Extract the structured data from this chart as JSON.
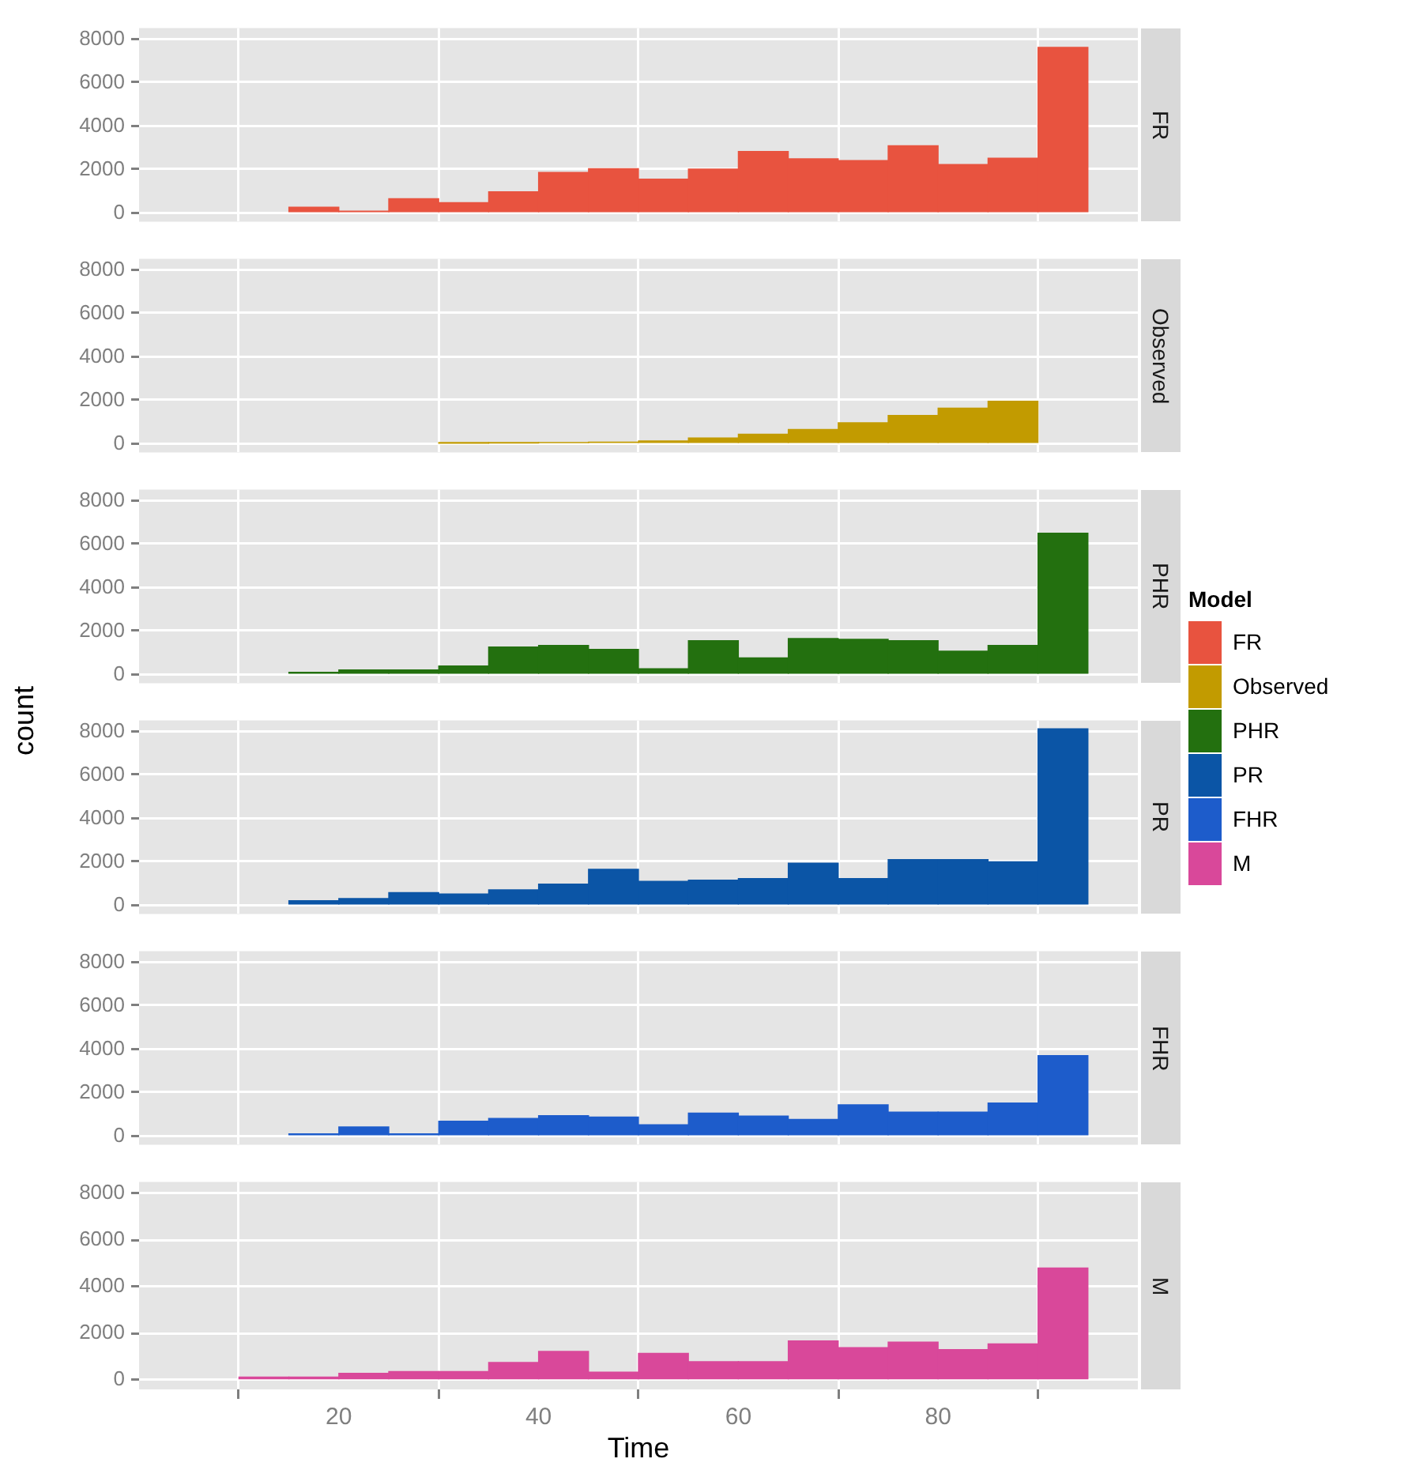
{
  "chart_data": [
    {
      "type": "histogram",
      "bins": [
        15,
        20,
        25,
        30,
        35,
        40,
        45,
        50,
        55,
        60,
        65,
        70,
        75,
        80,
        85,
        90,
        95
      ],
      "series": [
        {
          "name": "FR",
          "color": "#e8533f",
          "values": [
            260,
            80,
            650,
            470,
            970,
            1860,
            2040,
            1550,
            2020,
            2830,
            2490,
            2410,
            3090,
            2230,
            2520,
            7620
          ]
        }
      ],
      "xlim": [
        0,
        100
      ],
      "xticks": [
        20,
        40,
        60,
        80
      ],
      "ylim": [
        -400,
        8500
      ],
      "yticks": [
        0,
        2000,
        4000,
        6000,
        8000
      ],
      "grid": true,
      "tick_labels": "y",
      "legend": "right",
      "legend_title": "Model"
    },
    {
      "type": "histogram",
      "bins": [
        30,
        35,
        40,
        45,
        50,
        55,
        60,
        65,
        70,
        75,
        80,
        85,
        90
      ],
      "series": [
        {
          "name": "Observed",
          "color": "#c29b00",
          "values": [
            20,
            30,
            50,
            70,
            130,
            260,
            440,
            650,
            960,
            1300,
            1640,
            1950
          ]
        }
      ],
      "xlim": [
        0,
        100
      ],
      "xticks": [
        20,
        40,
        60,
        80
      ],
      "ylim": [
        -400,
        8500
      ],
      "yticks": [
        0,
        2000,
        4000,
        6000,
        8000
      ],
      "grid": true,
      "tick_labels": "y",
      "legend": "right"
    },
    {
      "type": "histogram",
      "bins": [
        15,
        20,
        25,
        30,
        35,
        40,
        45,
        50,
        55,
        60,
        65,
        70,
        75,
        80,
        85,
        90,
        95
      ],
      "series": [
        {
          "name": "PHR",
          "color": "#23700f",
          "values": [
            100,
            210,
            210,
            390,
            1260,
            1340,
            1150,
            260,
            1550,
            760,
            1650,
            1620,
            1550,
            1070,
            1340,
            6500
          ]
        }
      ],
      "xlim": [
        0,
        100
      ],
      "xticks": [
        20,
        40,
        60,
        80
      ],
      "ylim": [
        -400,
        8500
      ],
      "yticks": [
        0,
        2000,
        4000,
        6000,
        8000
      ],
      "grid": true,
      "tick_labels": "y",
      "legend": "right"
    },
    {
      "type": "histogram",
      "bins": [
        15,
        20,
        25,
        30,
        35,
        40,
        45,
        50,
        55,
        60,
        65,
        70,
        75,
        80,
        85,
        90,
        95
      ],
      "series": [
        {
          "name": "PR",
          "color": "#0b55a6",
          "values": [
            210,
            310,
            580,
            520,
            710,
            970,
            1650,
            1100,
            1150,
            1230,
            1940,
            1230,
            2100,
            2100,
            2000,
            8120
          ]
        }
      ],
      "ylabel": "count",
      "xlim": [
        0,
        100
      ],
      "xticks": [
        20,
        40,
        60,
        80
      ],
      "ylim": [
        -400,
        8500
      ],
      "yticks": [
        0,
        2000,
        4000,
        6000,
        8000
      ],
      "grid": true,
      "tick_labels": "y",
      "legend": "right"
    },
    {
      "type": "histogram",
      "bins": [
        15,
        20,
        25,
        30,
        35,
        40,
        45,
        50,
        55,
        60,
        65,
        70,
        75,
        80,
        85,
        90,
        95
      ],
      "series": [
        {
          "name": "FHR",
          "color": "#1d5ccb",
          "values": [
            100,
            420,
            100,
            680,
            810,
            940,
            870,
            520,
            1050,
            920,
            760,
            1440,
            1100,
            1100,
            1520,
            3700
          ]
        }
      ],
      "xlim": [
        0,
        100
      ],
      "xticks": [
        20,
        40,
        60,
        80
      ],
      "ylim": [
        -400,
        8500
      ],
      "yticks": [
        0,
        2000,
        4000,
        6000,
        8000
      ],
      "grid": true,
      "tick_labels": "y",
      "legend": "right"
    },
    {
      "type": "histogram",
      "bins": [
        10,
        15,
        20,
        25,
        30,
        35,
        40,
        45,
        50,
        55,
        60,
        65,
        70,
        75,
        80,
        85,
        90,
        95
      ],
      "series": [
        {
          "name": "M",
          "color": "#d9489a",
          "values": [
            130,
            130,
            290,
            370,
            370,
            760,
            1230,
            340,
            1150,
            790,
            790,
            1680,
            1390,
            1630,
            1310,
            1550,
            4810
          ]
        }
      ],
      "xlabel": "Time",
      "xlim": [
        0,
        100
      ],
      "xticks": [
        20,
        40,
        60,
        80
      ],
      "ylim": [
        -400,
        8500
      ],
      "yticks": [
        0,
        2000,
        4000,
        6000,
        8000
      ],
      "grid": true,
      "legend": "right"
    }
  ]
}
